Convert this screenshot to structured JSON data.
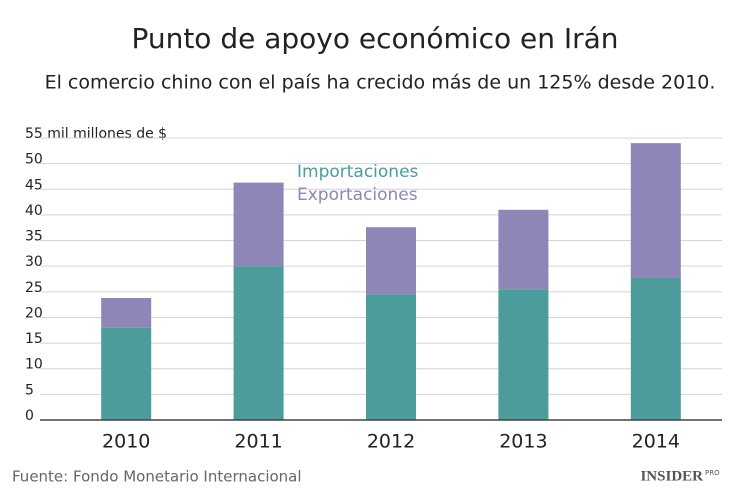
{
  "chart_data": {
    "type": "stacked_bar",
    "title": "Punto de apoyo económico en Irán",
    "subtitle": "El comercio chino con el país ha crecido más de un 125% desde 2010.",
    "categories": [
      "2010",
      "2011",
      "2012",
      "2013",
      "2014"
    ],
    "series": [
      {
        "name": "Importaciones",
        "color": "#4c9c9c",
        "values": [
          18,
          30,
          24.5,
          25.5,
          27.7
        ]
      },
      {
        "name": "Exportaciones",
        "color": "#8d86b6",
        "values": [
          5.8,
          16.3,
          13.1,
          15.5,
          26.3
        ]
      }
    ],
    "ylim": [
      0,
      55
    ],
    "yticks": [
      0,
      5,
      10,
      15,
      20,
      25,
      30,
      35,
      40,
      45,
      50,
      {
        "value": 55,
        "label": "55 mil millones de $"
      }
    ],
    "grid": true,
    "source": "Fuente: Fondo Monetario Internacional",
    "logo": "INSIDER",
    "logo_sub": "PRO"
  }
}
